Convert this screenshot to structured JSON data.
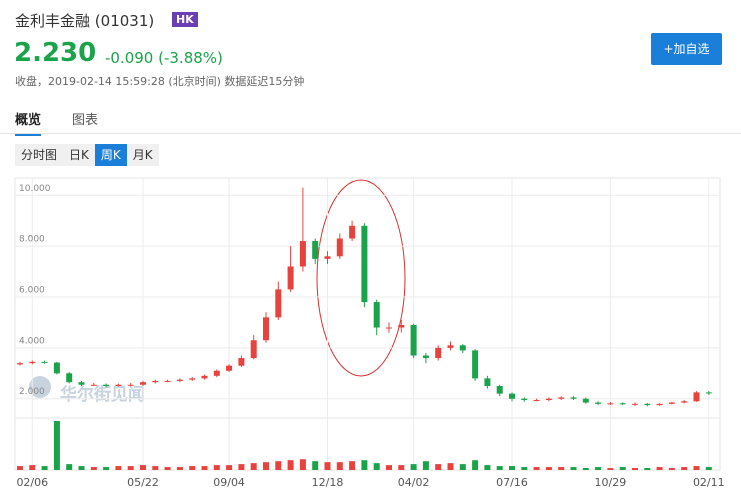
{
  "header": {
    "name": "金利丰金融",
    "code": "(01031)",
    "market": "HK",
    "price": "2.230",
    "change": "-0.090 (-3.88%)",
    "status": "收盘，2019-02-14 15:59:28 (北京时间) 数据延迟15分钟",
    "button": "+加自选"
  },
  "tabs": [
    "概览",
    "图表"
  ],
  "periods": [
    "分时图",
    "日K",
    "周K",
    "月K"
  ],
  "watermark": "华尔街见闻",
  "chart_data": {
    "type": "candlestick",
    "up_color": "#e8423f",
    "down_color": "#1aa34a",
    "x": [
      null,
      "02/06",
      null,
      null,
      null,
      null,
      null,
      null,
      null,
      null,
      "05/22",
      null,
      null,
      null,
      null,
      null,
      null,
      "09/04",
      null,
      null,
      null,
      null,
      null,
      null,
      null,
      "12/18",
      null,
      null,
      null,
      null,
      null,
      null,
      "04/02",
      null,
      null,
      null,
      null,
      null,
      null,
      null,
      "07/16",
      null,
      null,
      null,
      null,
      null,
      null,
      null,
      "10/29",
      null,
      null,
      null,
      null,
      null,
      null,
      null,
      "02/11"
    ],
    "open": [
      3.35,
      3.4,
      3.45,
      3.42,
      3.0,
      2.65,
      2.55,
      2.55,
      2.5,
      2.55,
      2.55,
      2.65,
      2.7,
      2.7,
      2.75,
      2.8,
      2.9,
      3.1,
      3.3,
      3.6,
      4.3,
      5.2,
      6.3,
      7.2,
      8.2,
      7.5,
      7.6,
      8.3,
      8.8,
      5.8,
      4.8,
      4.8,
      4.9,
      3.7,
      3.6,
      4.0,
      4.1,
      3.9,
      2.8,
      2.5,
      2.2,
      2.0,
      1.95,
      1.95,
      2.0,
      2.05,
      2.0,
      1.85,
      1.8,
      1.82,
      1.8,
      1.8,
      1.75,
      1.8,
      1.85,
      1.9,
      2.25
    ],
    "high": [
      3.45,
      3.5,
      3.5,
      3.45,
      3.05,
      2.7,
      2.62,
      2.6,
      2.6,
      2.62,
      2.7,
      2.75,
      2.75,
      2.8,
      2.85,
      2.95,
      3.15,
      3.35,
      3.7,
      4.5,
      5.4,
      6.6,
      8.0,
      10.3,
      8.3,
      7.8,
      8.5,
      9.0,
      8.9,
      5.9,
      5.0,
      5.1,
      4.95,
      3.8,
      4.1,
      4.25,
      4.15,
      3.95,
      2.9,
      2.55,
      2.25,
      2.05,
      2.0,
      2.05,
      2.1,
      2.1,
      2.05,
      1.9,
      1.87,
      1.86,
      1.85,
      1.83,
      1.82,
      1.88,
      1.95,
      2.3,
      2.3
    ],
    "low": [
      3.3,
      3.35,
      3.38,
      2.95,
      2.6,
      2.5,
      2.5,
      2.45,
      2.48,
      2.5,
      2.5,
      2.6,
      2.65,
      2.65,
      2.7,
      2.75,
      2.85,
      3.05,
      3.25,
      3.55,
      4.2,
      5.1,
      6.2,
      7.0,
      7.3,
      7.3,
      7.5,
      8.2,
      5.6,
      4.5,
      4.6,
      4.6,
      3.6,
      3.4,
      3.5,
      3.9,
      3.8,
      2.7,
      2.4,
      2.1,
      1.9,
      1.88,
      1.9,
      1.9,
      1.95,
      1.95,
      1.8,
      1.75,
      1.75,
      1.75,
      1.72,
      1.7,
      1.72,
      1.78,
      1.82,
      1.88,
      2.15
    ],
    "close": [
      3.4,
      3.45,
      3.42,
      3.0,
      2.65,
      2.55,
      2.55,
      2.5,
      2.55,
      2.55,
      2.65,
      2.7,
      2.7,
      2.75,
      2.8,
      2.9,
      3.1,
      3.3,
      3.6,
      4.3,
      5.2,
      6.3,
      7.2,
      8.2,
      7.5,
      7.6,
      8.3,
      8.8,
      5.8,
      4.8,
      4.8,
      4.9,
      3.7,
      3.6,
      4.0,
      4.1,
      3.9,
      2.8,
      2.5,
      2.2,
      2.0,
      1.95,
      1.95,
      2.0,
      2.05,
      2.0,
      1.85,
      1.8,
      1.82,
      1.8,
      1.8,
      1.75,
      1.8,
      1.85,
      1.9,
      2.25,
      2.23
    ],
    "volume": [
      4,
      5,
      4,
      50,
      6,
      4,
      3,
      3,
      4,
      4,
      5,
      4,
      3,
      3,
      4,
      4,
      5,
      5,
      6,
      7,
      8,
      9,
      10,
      11,
      9,
      8,
      8,
      9,
      10,
      7,
      5,
      5,
      6,
      9,
      6,
      7,
      6,
      10,
      5,
      4,
      4,
      3,
      3,
      3,
      3,
      3,
      2,
      3,
      2,
      3,
      2,
      2,
      3,
      2,
      3,
      4,
      3
    ],
    "ylim": [
      1.4,
      10.6
    ],
    "yticks": [
      {
        "value": 2,
        "label": "2.000"
      },
      {
        "value": 4,
        "label": "4.000"
      },
      {
        "value": 6,
        "label": "6.000"
      },
      {
        "value": 8,
        "label": "8.000"
      },
      {
        "value": 10,
        "label": "10.000"
      }
    ],
    "grid": true
  }
}
